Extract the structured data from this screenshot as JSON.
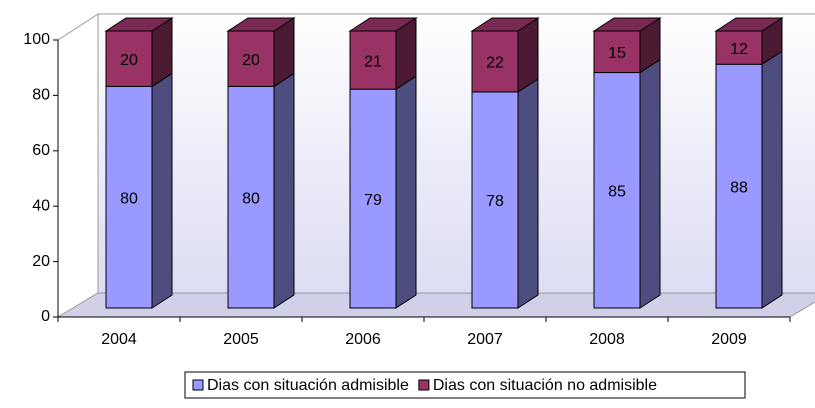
{
  "chart_data": {
    "type": "bar3d-stacked",
    "categories": [
      "2004",
      "2005",
      "2006",
      "2007",
      "2008",
      "2009"
    ],
    "series": [
      {
        "name": "Dias con situación admisible",
        "color": "#9999ff",
        "values": [
          80,
          80,
          79,
          78,
          85,
          88
        ]
      },
      {
        "name": "Dias con situación no admisible",
        "color": "#993366",
        "values": [
          20,
          20,
          21,
          22,
          15,
          12
        ]
      }
    ],
    "ylim": [
      0,
      100
    ],
    "yticks": [
      0,
      20,
      40,
      60,
      80,
      100
    ],
    "grid": false,
    "legend": "bottom"
  }
}
